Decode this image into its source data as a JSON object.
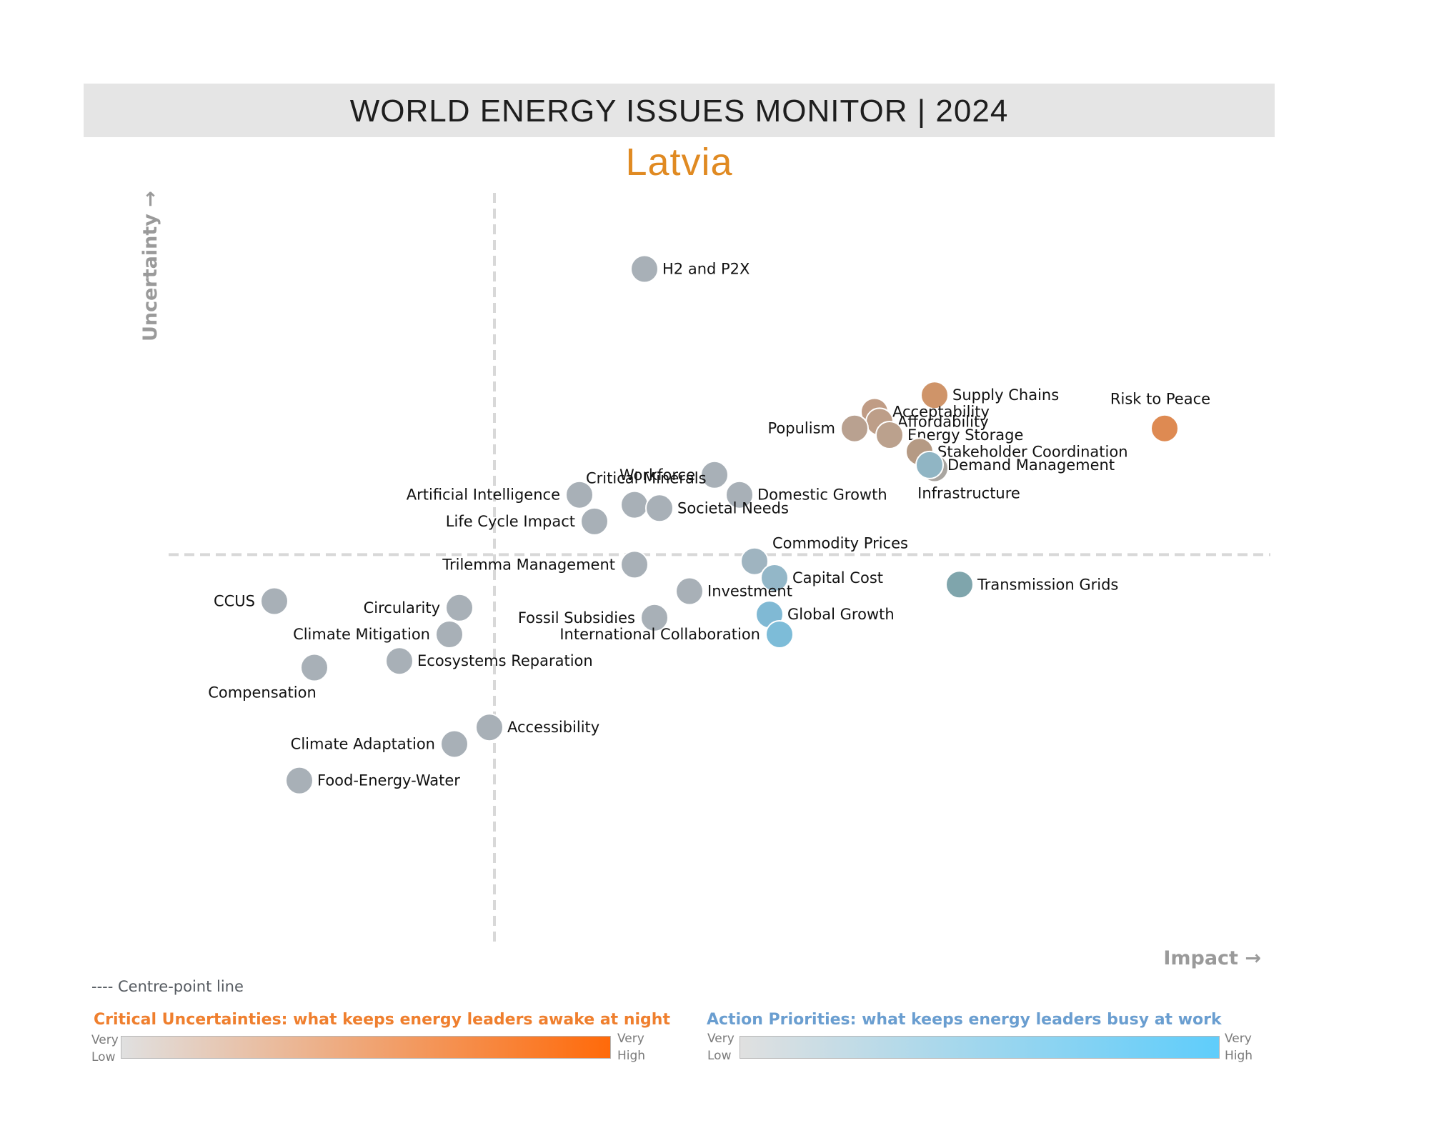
{
  "header": {
    "title": "WORLD ENERGY ISSUES MONITOR | 2024",
    "country": "Latvia"
  },
  "centre_line_note": "---- Centre-point line",
  "legend": {
    "uncertainties": {
      "title": "Critical Uncertainties: what keeps energy leaders awake at night",
      "low": [
        "Very",
        "Low"
      ],
      "high": [
        "Very",
        "High"
      ],
      "color_low": "#e0e0e0",
      "color_high": "#ff6a0a"
    },
    "priorities": {
      "title": "Action Priorities: what keeps energy leaders busy at work",
      "low": [
        "Very",
        "Low"
      ],
      "high": [
        "Very",
        "High"
      ],
      "color_low": "#e0e0e0",
      "color_high": "#5fcdfb"
    }
  },
  "chart_data": {
    "type": "scatter",
    "xlabel": "Impact →",
    "ylabel": "Uncertainty →",
    "xlim": [
      0,
      100
    ],
    "ylim": [
      0,
      100
    ],
    "centre": {
      "x": 28,
      "y": 52
    },
    "grid": false,
    "points": [
      {
        "name": "H2 and P2X",
        "x": 43,
        "y": 95,
        "color": "#a8b0b7",
        "label_pos": "right"
      },
      {
        "name": "Supply Chains",
        "x": 72,
        "y": 76,
        "color": "#cf9469",
        "label_pos": "right"
      },
      {
        "name": "Risk to Peace",
        "x": 95,
        "y": 71,
        "color": "#de8a52",
        "label_pos": "above"
      },
      {
        "name": "Acceptability",
        "x": 66,
        "y": 73.5,
        "color": "#c09c85",
        "label_pos": "right"
      },
      {
        "name": "Affordability",
        "x": 66.5,
        "y": 72,
        "color": "#bd9e88",
        "label_pos": "right"
      },
      {
        "name": "Populism",
        "x": 64,
        "y": 71,
        "color": "#b9a190",
        "label_pos": "left"
      },
      {
        "name": "Energy Storage",
        "x": 67.5,
        "y": 70,
        "color": "#bba18d",
        "label_pos": "right"
      },
      {
        "name": "Stakeholder Coordination",
        "x": 70.5,
        "y": 67.5,
        "color": "#b59a84",
        "label_pos": "right"
      },
      {
        "name": "Infrastructure",
        "x": 72,
        "y": 65,
        "color": "#a9a5a0",
        "label_pos": "below"
      },
      {
        "name": "Demand Management",
        "x": 71.5,
        "y": 65.5,
        "color": "#90b5c4",
        "label_pos": "right"
      },
      {
        "name": "Workforce",
        "x": 50,
        "y": 64,
        "color": "#a8b0b7",
        "label_pos": "left"
      },
      {
        "name": "Domestic Growth",
        "x": 52.5,
        "y": 61,
        "color": "#a8b0b7",
        "label_pos": "right"
      },
      {
        "name": "Artificial Intelligence",
        "x": 36.5,
        "y": 61,
        "color": "#a8b0b7",
        "label_pos": "left"
      },
      {
        "name": "Critical Minerals",
        "x": 42,
        "y": 59.5,
        "color": "#a8b0b7",
        "label_pos": "right-above"
      },
      {
        "name": "Societal Needs",
        "x": 44.5,
        "y": 59,
        "color": "#a8b0b7",
        "label_pos": "right"
      },
      {
        "name": "Life Cycle Impact",
        "x": 38,
        "y": 57,
        "color": "#a8b0b7",
        "label_pos": "left"
      },
      {
        "name": "Commodity Prices",
        "x": 54,
        "y": 51,
        "color": "#9fb4c0",
        "label_pos": "right-above"
      },
      {
        "name": "Trilemma Management",
        "x": 42,
        "y": 50.5,
        "color": "#a8b0b7",
        "label_pos": "left"
      },
      {
        "name": "Capital Cost",
        "x": 56,
        "y": 48.5,
        "color": "#93b7c8",
        "label_pos": "right"
      },
      {
        "name": "Transmission Grids",
        "x": 74.5,
        "y": 47.5,
        "color": "#7fa5ac",
        "label_pos": "right"
      },
      {
        "name": "Investment",
        "x": 47.5,
        "y": 46.5,
        "color": "#a8b0b7",
        "label_pos": "right"
      },
      {
        "name": "CCUS",
        "x": 6,
        "y": 45,
        "color": "#a8b0b7",
        "label_pos": "left"
      },
      {
        "name": "Circularity",
        "x": 24.5,
        "y": 44,
        "color": "#a8b0b7",
        "label_pos": "left"
      },
      {
        "name": "Global Growth",
        "x": 55.5,
        "y": 43,
        "color": "#80b9d4",
        "label_pos": "right"
      },
      {
        "name": "Fossil Subsidies",
        "x": 44,
        "y": 42.5,
        "color": "#a8b0b7",
        "label_pos": "left"
      },
      {
        "name": "Climate Mitigation",
        "x": 23.5,
        "y": 40,
        "color": "#a8b0b7",
        "label_pos": "left"
      },
      {
        "name": "International Collaboration",
        "x": 56.5,
        "y": 40,
        "color": "#7dbcd8",
        "label_pos": "left"
      },
      {
        "name": "Ecosystems Reparation",
        "x": 18.5,
        "y": 36,
        "color": "#a8b0b7",
        "label_pos": "right"
      },
      {
        "name": "Compensation",
        "x": 10,
        "y": 35,
        "color": "#a8b0b7",
        "label_pos": "below"
      },
      {
        "name": "Accessibility",
        "x": 27.5,
        "y": 26,
        "color": "#a8b0b7",
        "label_pos": "right"
      },
      {
        "name": "Climate Adaptation",
        "x": 24,
        "y": 23.5,
        "color": "#a8b0b7",
        "label_pos": "left"
      },
      {
        "name": "Food-Energy-Water",
        "x": 8.5,
        "y": 18,
        "color": "#a8b0b7",
        "label_pos": "right"
      }
    ]
  }
}
